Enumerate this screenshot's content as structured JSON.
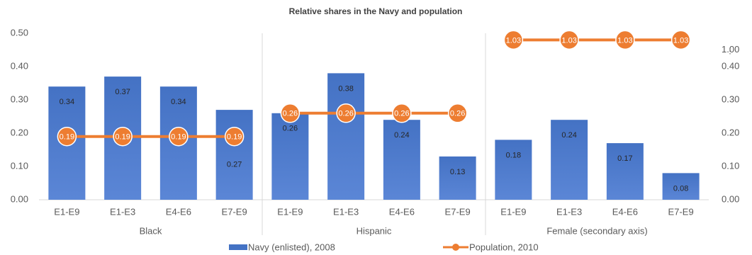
{
  "chart_data": {
    "type": "bar-line",
    "title": "Relative shares in the Navy and population",
    "categories": [
      "E1-E9",
      "E1-E3",
      "E4-E6",
      "E7-E9",
      "E1-E9",
      "E1-E3",
      "E4-E6",
      "E7-E9",
      "E1-E9",
      "E1-E3",
      "E4-E6",
      "E7-E9"
    ],
    "group_labels": [
      "Black",
      "Hispanic",
      "Female (secondary axis)"
    ],
    "group_axes": [
      "y",
      "y",
      "y2"
    ],
    "series": [
      {
        "name": "Navy (enlisted), 2008",
        "type": "bar",
        "color": "#4472c4",
        "values": [
          0.34,
          0.37,
          0.34,
          0.27,
          0.26,
          0.38,
          0.24,
          0.13,
          0.18,
          0.24,
          0.17,
          0.08
        ]
      },
      {
        "name": "Population, 2010",
        "type": "line",
        "color": "#ed7d31",
        "values": [
          0.19,
          0.19,
          0.19,
          0.19,
          0.26,
          0.26,
          0.26,
          0.26,
          1.03,
          1.03,
          1.03,
          1.03
        ]
      }
    ],
    "ylim": [
      0,
      0.5
    ],
    "yticks": [
      {
        "value": 0,
        "label": "0.00"
      },
      {
        "value": 0.1,
        "label": "0.10"
      },
      {
        "value": 0.2,
        "label": "0.20"
      },
      {
        "value": 0.3,
        "label": "0.30"
      },
      {
        "value": 0.4,
        "label": "0.40"
      },
      {
        "value": 0.5,
        "label": "0.50"
      }
    ],
    "y2lim": [
      0,
      1.05
    ],
    "y2break": [
      0.4,
      0.95
    ],
    "y2ticks": [
      {
        "value": 0,
        "label": "0.00"
      },
      {
        "value": 0.1,
        "label": "0.10"
      },
      {
        "value": 0.2,
        "label": "0.20"
      },
      {
        "value": 0.3,
        "label": "0.30"
      },
      {
        "value": 0.4,
        "label": "0.40"
      },
      {
        "value": 1.0,
        "label": "1.00"
      }
    ],
    "legend": "bottom"
  }
}
